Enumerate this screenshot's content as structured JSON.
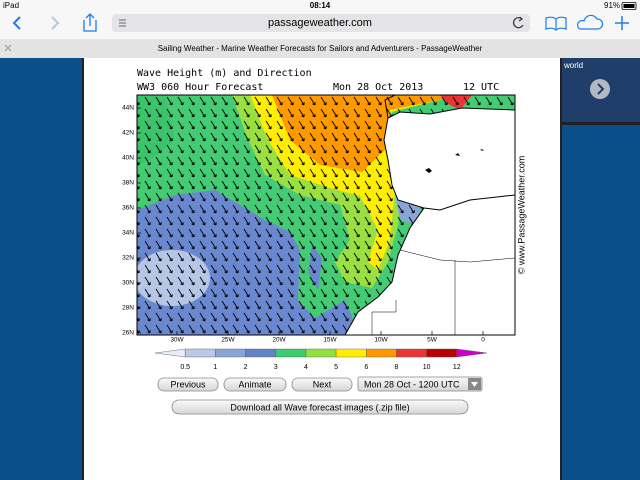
{
  "status_bar": {
    "device": "iPad",
    "time": "08:14",
    "battery": "91%"
  },
  "toolbar": {
    "url": "passageweather.com"
  },
  "tab": {
    "title": "Sailing Weather - Marine Weather Forecasts for Sailors and Adventurers - PassageWeather"
  },
  "side_panel": {
    "label": "world"
  },
  "map": {
    "title": "Wave Height (m) and Direction",
    "subtitle": "WW3 060 Hour Forecast",
    "date": "Mon 28 Oct 2013",
    "time": "12 UTC",
    "lat_labels": [
      "44N",
      "42N",
      "40N",
      "38N",
      "36N",
      "34N",
      "32N",
      "30N",
      "28N",
      "26N"
    ],
    "lon_labels": [
      "30W",
      "25W",
      "20W",
      "15W",
      "10W",
      "5W",
      "0"
    ],
    "watermark": "© www.PassageWeather.com"
  },
  "legend": {
    "labels": [
      "0.5",
      "1",
      "2",
      "3",
      "4",
      "5",
      "6",
      "8",
      "10",
      "12"
    ],
    "colors": [
      "#e8eef8",
      "#b9c9e6",
      "#8ba4d6",
      "#6482c8",
      "#3dcc72",
      "#8fe040",
      "#ffee00",
      "#ff9900",
      "#ee3333",
      "#bb0000",
      "#cc00cc"
    ]
  },
  "controls": {
    "previous": "Previous",
    "animate": "Animate",
    "next": "Next",
    "select": "Mon 28 Oct - 1200 UTC",
    "download": "Download all Wave forecast images (.zip file)"
  }
}
